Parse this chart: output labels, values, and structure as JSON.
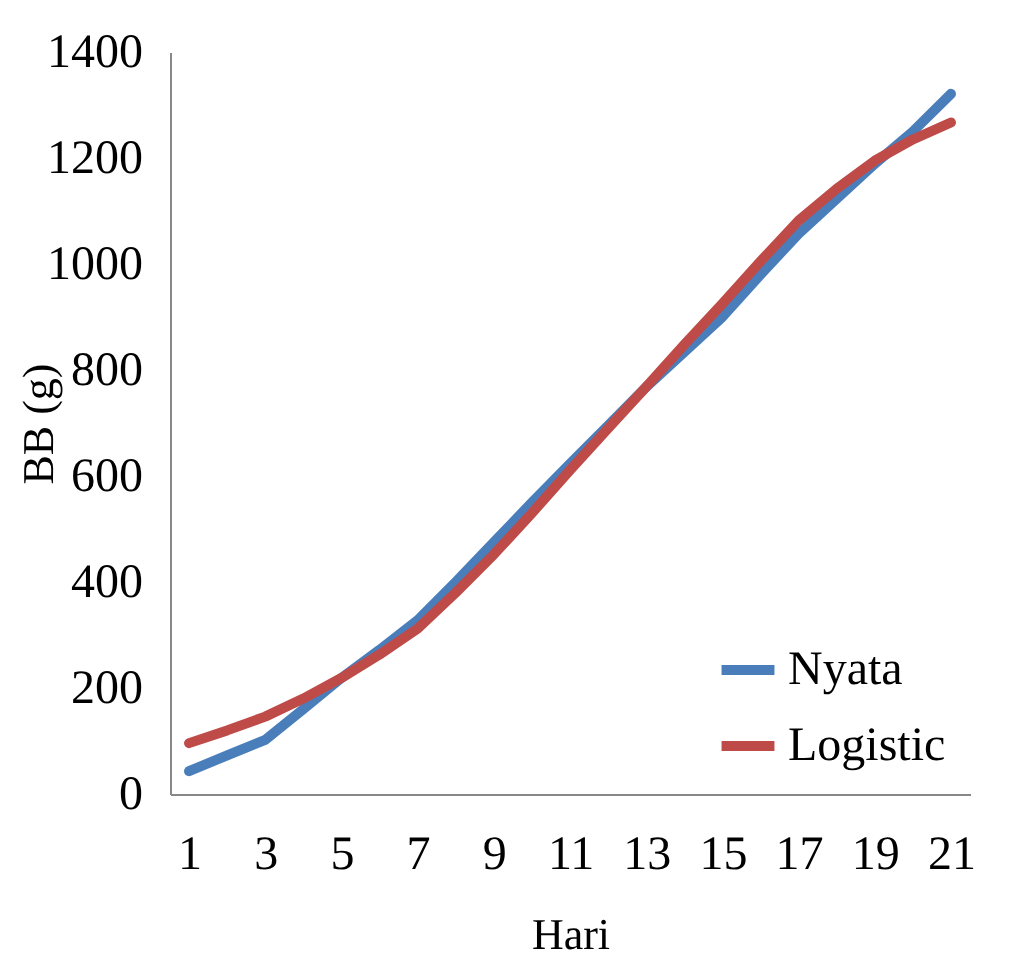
{
  "chart_data": {
    "type": "line",
    "xlabel": "Hari",
    "ylabel": "BB (g)",
    "x": [
      1,
      2,
      3,
      4,
      5,
      6,
      7,
      8,
      9,
      10,
      11,
      12,
      13,
      14,
      15,
      16,
      17,
      18,
      19,
      20,
      21
    ],
    "xlim": [
      0.5,
      21.5
    ],
    "xticks": [
      1,
      3,
      5,
      7,
      9,
      11,
      13,
      15,
      17,
      19,
      21
    ],
    "series": [
      {
        "name": "Nyata",
        "color": "#4a7ebb",
        "values": [
          43,
          73,
          102,
          160,
          219,
          272,
          328,
          400,
          475,
          550,
          623,
          695,
          768,
          834,
          900,
          980,
          1057,
          1123,
          1189,
          1250,
          1321
        ]
      },
      {
        "name": "Logistic",
        "color": "#be4b48",
        "values": [
          96,
          120,
          146,
          180,
          219,
          263,
          312,
          380,
          452,
          530,
          611,
          690,
          768,
          848,
          925,
          1005,
          1082,
          1142,
          1195,
          1235,
          1267
        ]
      }
    ],
    "ylim": [
      0,
      1400
    ],
    "yticks": [
      0,
      200,
      400,
      600,
      800,
      1000,
      1200,
      1400
    ],
    "grid": false,
    "legend": "bottom right",
    "marker": "none",
    "line_style": "solid"
  }
}
